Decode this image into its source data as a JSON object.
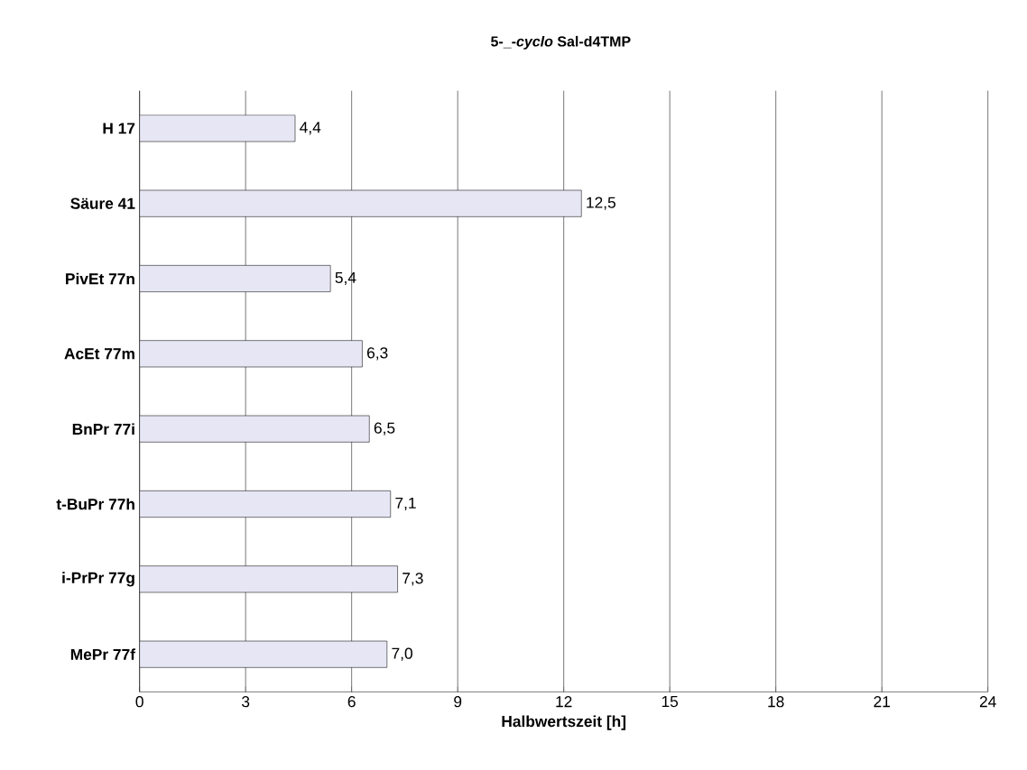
{
  "chart_data": {
    "type": "bar",
    "orientation": "horizontal",
    "title": "5-_-*cyclo* Sal-d4TMP",
    "xlabel": "Halbwertszeit [h]",
    "categories": [
      "H 17",
      "Säure 41",
      "PivEt 77n",
      "AcEt 77m",
      "BnPr 77i",
      "t-BuPr 77h",
      "i-PrPr 77g",
      "MePr 77f"
    ],
    "values": [
      4.4,
      12.5,
      5.4,
      6.3,
      6.5,
      7.1,
      7.3,
      7.0
    ],
    "value_labels": [
      "4,4",
      "12,5",
      "5,4",
      "6,3",
      "6,5",
      "7,1",
      "7,3",
      "7,0"
    ],
    "color": "#e6e6f5",
    "xlim": [
      0,
      24
    ],
    "xticks": [
      0,
      3,
      6,
      9,
      12,
      15,
      18,
      21,
      24
    ],
    "grid": "x"
  }
}
